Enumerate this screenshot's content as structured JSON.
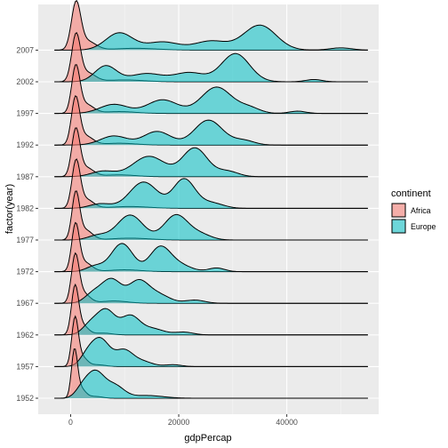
{
  "chart_data": {
    "type": "ridgeline",
    "xlabel": "gdpPercap",
    "ylabel": "factor(year)",
    "xlim": [
      -6000,
      57000
    ],
    "x_ticks": [
      0,
      20000,
      40000
    ],
    "x_tick_labels": [
      "0",
      "20000",
      "40000"
    ],
    "x_max_data": 55000,
    "grid": true,
    "legend": {
      "title": "continent",
      "position": "right",
      "entries": [
        {
          "name": "Africa",
          "color": "#F8766D"
        },
        {
          "name": "Europe",
          "color": "#00BFC4"
        }
      ]
    },
    "years": [
      "1952",
      "1957",
      "1962",
      "1967",
      "1972",
      "1977",
      "1982",
      "1987",
      "1992",
      "1997",
      "2002",
      "2007"
    ],
    "series": [
      {
        "name": "Africa",
        "color": "#F8766D",
        "ridges": [
          {
            "year": "1952",
            "peaks": [
              [
                700,
                1.0,
                550
              ],
              [
                1800,
                0.22,
                900
              ],
              [
                4500,
                0.04,
                1300
              ]
            ]
          },
          {
            "year": "1957",
            "peaks": [
              [
                800,
                1.0,
                600
              ],
              [
                2000,
                0.22,
                1000
              ],
              [
                5000,
                0.04,
                1400
              ]
            ]
          },
          {
            "year": "1962",
            "peaks": [
              [
                800,
                1.0,
                650
              ],
              [
                2100,
                0.22,
                1100
              ],
              [
                6000,
                0.04,
                1600
              ]
            ]
          },
          {
            "year": "1967",
            "peaks": [
              [
                850,
                1.0,
                700
              ],
              [
                2300,
                0.22,
                1200
              ],
              [
                8000,
                0.05,
                2500
              ]
            ]
          },
          {
            "year": "1972",
            "peaks": [
              [
                900,
                1.0,
                700
              ],
              [
                2600,
                0.2,
                1300
              ],
              [
                10000,
                0.04,
                3000
              ]
            ]
          },
          {
            "year": "1977",
            "peaks": [
              [
                950,
                1.0,
                700
              ],
              [
                2700,
                0.22,
                1300
              ],
              [
                11000,
                0.04,
                3500
              ]
            ]
          },
          {
            "year": "1982",
            "peaks": [
              [
                1000,
                1.0,
                750
              ],
              [
                2800,
                0.2,
                1400
              ],
              [
                11000,
                0.04,
                3500
              ]
            ]
          },
          {
            "year": "1987",
            "peaks": [
              [
                950,
                1.0,
                750
              ],
              [
                2800,
                0.2,
                1400
              ],
              [
                9000,
                0.04,
                3000
              ]
            ]
          },
          {
            "year": "1992",
            "peaks": [
              [
                900,
                1.0,
                750
              ],
              [
                2700,
                0.2,
                1400
              ],
              [
                9000,
                0.04,
                3000
              ]
            ]
          },
          {
            "year": "1997",
            "peaks": [
              [
                950,
                1.0,
                750
              ],
              [
                2800,
                0.2,
                1400
              ],
              [
                9000,
                0.04,
                3000
              ]
            ]
          },
          {
            "year": "2002",
            "peaks": [
              [
                1000,
                1.0,
                800
              ],
              [
                3000,
                0.2,
                1500
              ],
              [
                10000,
                0.04,
                3500
              ]
            ]
          },
          {
            "year": "2007",
            "peaks": [
              [
                1000,
                1.0,
                850
              ],
              [
                3000,
                0.2,
                1600
              ],
              [
                12000,
                0.04,
                4000
              ]
            ]
          }
        ]
      },
      {
        "name": "Europe",
        "color": "#00BFC4",
        "ridges": [
          {
            "year": "1952",
            "peaks": [
              [
                2000,
                0.15,
                1200
              ],
              [
                4500,
                0.58,
                1700
              ],
              [
                8200,
                0.26,
                1700
              ],
              [
                14000,
                0.06,
                3000
              ]
            ]
          },
          {
            "year": "1957",
            "peaks": [
              [
                3000,
                0.2,
                1300
              ],
              [
                5500,
                0.6,
                1700
              ],
              [
                9800,
                0.33,
                1600
              ],
              [
                13000,
                0.12,
                2000
              ],
              [
                19000,
                0.04,
                1500
              ]
            ]
          },
          {
            "year": "1962",
            "peaks": [
              [
                3500,
                0.2,
                1400
              ],
              [
                6500,
                0.55,
                1700
              ],
              [
                11000,
                0.4,
                1700
              ],
              [
                15000,
                0.14,
                2200
              ],
              [
                21000,
                0.06,
                1700
              ]
            ]
          },
          {
            "year": "1967",
            "peaks": [
              [
                4000,
                0.18,
                1500
              ],
              [
                7500,
                0.53,
                1900
              ],
              [
                12500,
                0.45,
                1800
              ],
              [
                16000,
                0.2,
                2200
              ],
              [
                23000,
                0.07,
                1800
              ]
            ]
          },
          {
            "year": "1972",
            "peaks": [
              [
                4500,
                0.12,
                1600
              ],
              [
                9500,
                0.62,
                2000
              ],
              [
                16500,
                0.52,
                1900
              ],
              [
                20000,
                0.15,
                2200
              ],
              [
                27000,
                0.08,
                1500
              ]
            ]
          },
          {
            "year": "1977",
            "peaks": [
              [
                5000,
                0.1,
                1800
              ],
              [
                11000,
                0.55,
                2400
              ],
              [
                19500,
                0.55,
                2200
              ],
              [
                24000,
                0.12,
                2000
              ]
            ]
          },
          {
            "year": "1982",
            "peaks": [
              [
                5500,
                0.1,
                2000
              ],
              [
                13500,
                0.58,
                2600
              ],
              [
                21000,
                0.64,
                2000
              ],
              [
                26000,
                0.12,
                2200
              ]
            ]
          },
          {
            "year": "1987",
            "peaks": [
              [
                6000,
                0.12,
                2200
              ],
              [
                14500,
                0.45,
                3000
              ],
              [
                23000,
                0.63,
                2300
              ],
              [
                29000,
                0.12,
                2000
              ]
            ]
          },
          {
            "year": "1992",
            "peaks": [
              [
                8000,
                0.2,
                2500
              ],
              [
                16000,
                0.3,
                2500
              ],
              [
                25500,
                0.55,
                2600
              ],
              [
                32000,
                0.1,
                2000
              ]
            ]
          },
          {
            "year": "1997",
            "peaks": [
              [
                8000,
                0.2,
                2600
              ],
              [
                17000,
                0.3,
                2800
              ],
              [
                27000,
                0.58,
                2800
              ],
              [
                33000,
                0.12,
                2000
              ],
              [
                42000,
                0.05,
                1500
              ]
            ]
          },
          {
            "year": "2002",
            "peaks": [
              [
                6500,
                0.35,
                2000
              ],
              [
                14000,
                0.18,
                3000
              ],
              [
                22000,
                0.2,
                2800
              ],
              [
                30500,
                0.62,
                2600
              ],
              [
                45000,
                0.05,
                1500
              ]
            ]
          },
          {
            "year": "2007",
            "peaks": [
              [
                9000,
                0.38,
                2500
              ],
              [
                17000,
                0.18,
                3000
              ],
              [
                26000,
                0.2,
                3000
              ],
              [
                35000,
                0.55,
                3000
              ],
              [
                50000,
                0.05,
                2000
              ]
            ]
          }
        ]
      }
    ]
  }
}
